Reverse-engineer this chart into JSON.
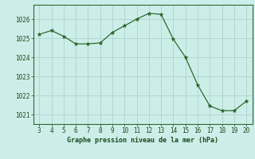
{
  "x": [
    3,
    4,
    5,
    6,
    7,
    8,
    9,
    10,
    11,
    12,
    13,
    14,
    15,
    16,
    17,
    18,
    19,
    20
  ],
  "y": [
    1025.2,
    1025.4,
    1025.1,
    1024.7,
    1024.7,
    1024.75,
    1025.3,
    1025.65,
    1026.0,
    1026.3,
    1026.25,
    1024.95,
    1024.0,
    1022.55,
    1021.45,
    1021.2,
    1021.2,
    1021.7
  ],
  "line_color": "#2d6a2d",
  "marker": "*",
  "marker_color": "#2d6a2d",
  "bg_color": "#cceee8",
  "grid_color": "#aacccc",
  "xlabel": "Graphe pression niveau de la mer (hPa)",
  "xlabel_color": "#1a4a1a",
  "tick_color": "#1a4a1a",
  "spine_color": "#336633",
  "ylim": [
    1020.5,
    1026.75
  ],
  "xlim": [
    2.5,
    20.5
  ],
  "yticks": [
    1021,
    1022,
    1023,
    1024,
    1025,
    1026
  ],
  "xticks": [
    3,
    4,
    5,
    6,
    7,
    8,
    9,
    10,
    11,
    12,
    13,
    14,
    15,
    16,
    17,
    18,
    19,
    20
  ],
  "figsize": [
    3.2,
    2.0
  ],
  "dpi": 100
}
